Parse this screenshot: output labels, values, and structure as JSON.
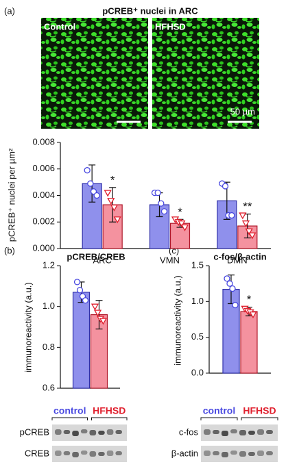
{
  "images": {
    "title": "pCREB⁺ nuclei in ARC",
    "labels": [
      "Control",
      "HFHSD"
    ],
    "scale": "50 µm"
  },
  "chart_data": [
    {
      "type": "bar",
      "panel": "(a)",
      "ylabel": "pCREB⁺ nuclei per µm²",
      "categories": [
        "ARC",
        "VMN",
        "DMN"
      ],
      "ylim": [
        0,
        0.008
      ],
      "yticks": [
        {
          "value": 0,
          "label": "0.000"
        },
        {
          "value": 0.002,
          "label": "0.002"
        },
        {
          "value": 0.004,
          "label": "0.004"
        },
        {
          "value": 0.006,
          "label": "0.006"
        },
        {
          "value": 0.008,
          "label": "0.008"
        }
      ],
      "series": [
        {
          "name": "Control",
          "color": "#8f90ec",
          "edge_color": "#2f2fa8",
          "marker": "circle",
          "marker_color": "#4848e0",
          "values": [
            0.0049,
            0.0033,
            0.0036
          ],
          "errors": [
            0.0014,
            0.0009,
            0.0014
          ],
          "points": [
            [
              0.0059,
              0.0049,
              0.0043,
              0.004
            ],
            [
              0.0042,
              0.0042,
              0.0034,
              0.0028
            ],
            [
              0.0049,
              0.0047,
              0.0025,
              0.0025
            ]
          ]
        },
        {
          "name": "HFHSD",
          "color": "#f4929f",
          "edge_color": "#b0182a",
          "marker": "triangle-down",
          "marker_color": "#e0202e",
          "values": [
            0.0033,
            0.0019,
            0.0017
          ],
          "errors": [
            0.0013,
            0.0003,
            0.0009
          ],
          "points": [
            [
              0.0042,
              0.0036,
              0.0031,
              0.0022
            ],
            [
              0.0022,
              0.002,
              0.0019,
              0.0016
            ],
            [
              0.0025,
              0.0019,
              0.0013,
              0.001
            ]
          ],
          "significance": [
            "*",
            "*",
            "**"
          ]
        }
      ]
    },
    {
      "type": "bar",
      "panel": "(b)",
      "title": "pCREB/CREB",
      "ylabel": "immunoreactivity (a.u.)",
      "categories": [
        null
      ],
      "ylim": [
        0.6,
        1.2
      ],
      "yticks": [
        0.6,
        0.8,
        {
          "value": 1,
          "label": "1.0"
        },
        1.2
      ],
      "series": [
        {
          "name": "control",
          "color": "#8f90ec",
          "edge_color": "#2f2fa8",
          "marker": "circle",
          "marker_color": "#4848e0",
          "values": [
            1.07
          ],
          "errors": [
            0.05
          ],
          "points": [
            [
              1.12,
              1.08,
              1.05,
              1.03
            ]
          ]
        },
        {
          "name": "HFHSD",
          "color": "#f4929f",
          "edge_color": "#b0182a",
          "marker": "triangle-down",
          "marker_color": "#e0202e",
          "values": [
            0.96
          ],
          "errors": [
            0.07
          ],
          "points": [
            [
              1.0,
              0.97,
              0.94,
              0.93
            ]
          ]
        }
      ],
      "blot_rows": [
        "pCREB",
        "CREB"
      ]
    },
    {
      "type": "bar",
      "panel": "(c)",
      "title": "c-fos/β-actin",
      "ylabel": "immunoreactivity (a.u.)",
      "categories": [
        null
      ],
      "ylim": [
        0,
        1.5
      ],
      "yticks": [
        {
          "value": 0,
          "label": "0.0"
        },
        0.5,
        {
          "value": 1,
          "label": "1.0"
        },
        1.5
      ],
      "series": [
        {
          "name": "control",
          "color": "#8f90ec",
          "edge_color": "#2f2fa8",
          "marker": "circle",
          "marker_color": "#4848e0",
          "values": [
            1.17
          ],
          "errors": [
            0.2
          ],
          "points": [
            [
              1.32,
              1.25,
              1.18,
              0.95
            ]
          ]
        },
        {
          "name": "HFHSD",
          "color": "#f4929f",
          "edge_color": "#b0182a",
          "marker": "triangle-down",
          "marker_color": "#e0202e",
          "values": [
            0.86
          ],
          "errors": [
            0.06
          ],
          "points": [
            [
              0.9,
              0.87,
              0.85,
              0.82
            ]
          ],
          "significance": [
            "*"
          ]
        }
      ],
      "blot_rows": [
        "c-fos",
        "β-actin"
      ]
    }
  ]
}
